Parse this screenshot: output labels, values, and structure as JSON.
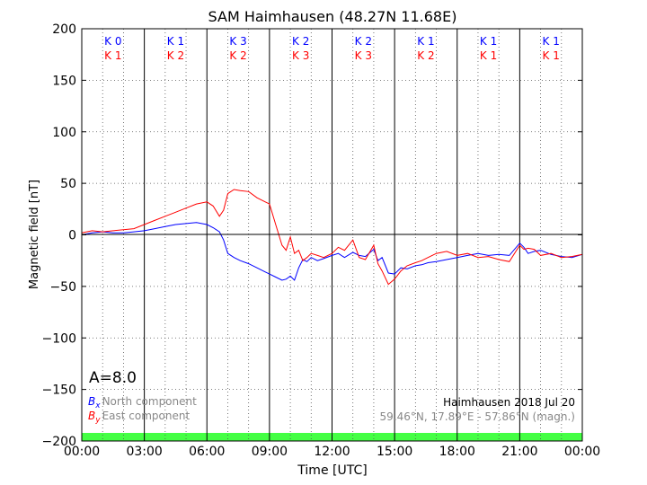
{
  "chart_data": {
    "type": "line",
    "title": "SAM Haimhausen (48.27N 11.68E)",
    "xlabel": "Time [UTC]",
    "ylabel": "Magnetic field [nT]",
    "x_ticks": [
      "00:00",
      "03:00",
      "06:00",
      "09:00",
      "12:00",
      "15:00",
      "18:00",
      "21:00",
      "00:00"
    ],
    "xlim": [
      0,
      24
    ],
    "ylim": [
      -200,
      200
    ],
    "y_ticks": [
      200,
      150,
      100,
      50,
      0,
      -50,
      -100,
      -150,
      -200
    ],
    "grid": true,
    "k_index": {
      "blue_labels": [
        "K 0",
        "K 1",
        "K 3",
        "K 2",
        "K 2",
        "K 1",
        "K 1",
        "K 1"
      ],
      "red_labels": [
        "K 1",
        "K 2",
        "K 2",
        "K 3",
        "K 3",
        "K 2",
        "K 1",
        "K 1"
      ],
      "blue_color": "#0000ff",
      "red_color": "#ff0000"
    },
    "a_index": "A=8.0",
    "legend": {
      "placement": "bottom-left",
      "entries": [
        {
          "symbol": "B",
          "sub": "x",
          "label": "North component",
          "color": "#0000ff"
        },
        {
          "symbol": "B",
          "sub": "y",
          "label": "East component",
          "color": "#ff0000"
        }
      ]
    },
    "info": {
      "station_date": "Haimhausen 2018 Jul 20",
      "coords": "59.46°N, 17.89°E - 57.86°N (magn.)"
    },
    "series": [
      {
        "color": "#0000ff",
        "x": [
          0,
          0.5,
          1,
          1.5,
          2,
          2.5,
          3,
          3.5,
          4,
          4.5,
          5,
          5.5,
          6,
          6.3,
          6.6,
          6.8,
          7,
          7.3,
          7.6,
          8,
          8.4,
          8.8,
          9,
          9.3,
          9.6,
          9.8,
          10,
          10.2,
          10.4,
          10.6,
          10.8,
          11,
          11.3,
          11.6,
          12,
          12.3,
          12.6,
          13,
          13.3,
          13.6,
          14,
          14.2,
          14.4,
          14.7,
          15,
          15.3,
          15.6,
          16,
          16.3,
          16.6,
          17,
          17.5,
          18,
          18.5,
          19,
          19.5,
          20,
          20.5,
          21,
          21.2,
          21.4,
          21.7,
          22,
          22.5,
          23,
          23.5,
          24
        ],
        "y": [
          0,
          2,
          3,
          2,
          2,
          3,
          4,
          6,
          8,
          10,
          11,
          12,
          10,
          7,
          3,
          -5,
          -18,
          -22,
          -25,
          -28,
          -32,
          -36,
          -38,
          -41,
          -44,
          -43,
          -40,
          -44,
          -32,
          -24,
          -26,
          -22,
          -25,
          -23,
          -20,
          -18,
          -22,
          -17,
          -20,
          -21,
          -14,
          -25,
          -22,
          -37,
          -38,
          -32,
          -33,
          -30,
          -29,
          -27,
          -26,
          -24,
          -22,
          -20,
          -18,
          -20,
          -19,
          -20,
          -8,
          -12,
          -18,
          -16,
          -15,
          -19,
          -21,
          -22,
          -19
        ]
      },
      {
        "color": "#ff0000",
        "x": [
          0,
          0.5,
          1,
          1.5,
          2,
          2.5,
          3,
          3.5,
          4,
          4.5,
          5,
          5.5,
          6,
          6.3,
          6.6,
          6.8,
          7,
          7.3,
          7.6,
          8,
          8.4,
          8.8,
          9,
          9.3,
          9.6,
          9.8,
          10,
          10.2,
          10.4,
          10.6,
          10.8,
          11,
          11.3,
          11.6,
          12,
          12.3,
          12.6,
          13,
          13.3,
          13.6,
          14,
          14.2,
          14.4,
          14.7,
          15,
          15.3,
          15.6,
          16,
          16.3,
          16.6,
          17,
          17.5,
          18,
          18.5,
          19,
          19.5,
          20,
          20.5,
          21,
          21.2,
          21.4,
          21.7,
          22,
          22.5,
          23,
          23.5,
          24
        ],
        "y": [
          2,
          4,
          3,
          4,
          5,
          6,
          10,
          14,
          18,
          22,
          26,
          30,
          32,
          28,
          18,
          24,
          40,
          44,
          43,
          42,
          36,
          32,
          30,
          10,
          -10,
          -15,
          -2,
          -18,
          -15,
          -25,
          -22,
          -18,
          -20,
          -22,
          -18,
          -12,
          -15,
          -5,
          -22,
          -24,
          -10,
          -28,
          -35,
          -48,
          -43,
          -35,
          -30,
          -27,
          -25,
          -22,
          -18,
          -16,
          -20,
          -18,
          -22,
          -21,
          -24,
          -26,
          -10,
          -14,
          -13,
          -14,
          -20,
          -18,
          -22,
          -21,
          -19
        ]
      }
    ]
  }
}
